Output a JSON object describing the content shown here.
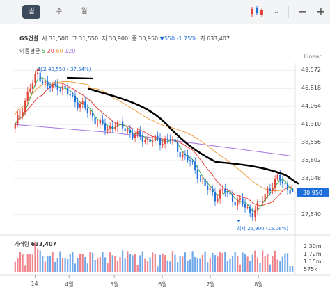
{
  "toolbar": {
    "tabs": [
      "일",
      "주",
      "월"
    ],
    "active_tab": 0,
    "chart_type_icon": "candlestick-icon",
    "more_icon": "chevron-down-icon",
    "minus_label": "−",
    "plus_label": "+"
  },
  "stock": {
    "name": "GS건설",
    "open_label": "시",
    "open": "31,500",
    "high_label": "고",
    "high": "31,550",
    "low_label": "저",
    "low": "30,900",
    "close_label": "종",
    "close": "30,950",
    "change_arrow": "▼",
    "change": "550",
    "change_pct": "-1.75%",
    "volume_label": "거",
    "volume": "633,407"
  },
  "moving_average": {
    "label": "이동평균",
    "periods": [
      "5",
      "20",
      "60",
      "120"
    ],
    "colors": [
      "#2fae46",
      "#e8453c",
      "#f0a040",
      "#a773e0"
    ]
  },
  "scale_label": "Linear",
  "colors": {
    "up": "#e0443a",
    "down": "#1e6fd9",
    "vol_up": "#f0848c",
    "vol_down": "#6ea8ea"
  },
  "chart_data": {
    "type": "line",
    "y_ticks": [
      "49,572",
      "46,818",
      "44,064",
      "41,310",
      "38,556",
      "35,802",
      "33,048",
      "30,950",
      "27,540"
    ],
    "y_tick_values": [
      49572,
      46818,
      44064,
      41310,
      38556,
      35802,
      33048,
      30950,
      27540
    ],
    "ylim": [
      25700,
      51000
    ],
    "x_ticks": [
      "14",
      "4월",
      "5월",
      "6월",
      "7월",
      "8월"
    ],
    "x_tick_positions": [
      0.08,
      0.2,
      0.36,
      0.53,
      0.7,
      0.87
    ],
    "high_annotation": "최고 49,550 (-37.54%)",
    "low_annotation": "최저 26,900 (15.06%)",
    "current_price": "30,950",
    "volume_title": "거래량",
    "volume_value": "633,407",
    "volume_ticks": [
      "2.30m",
      "1.72m",
      "1.15m",
      "575k"
    ]
  }
}
